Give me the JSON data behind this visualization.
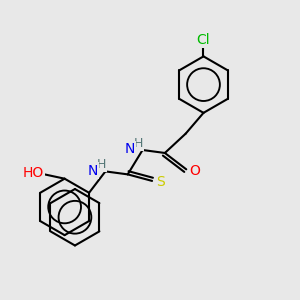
{
  "background_color": "#e8e8e8",
  "bond_color": "#000000",
  "bond_width": 1.5,
  "atom_colors": {
    "Cl": "#00bb00",
    "O": "#ff0000",
    "N": "#0000ee",
    "S": "#cccc00",
    "H_label": "#557777",
    "C": "#000000"
  },
  "font_size": 9,
  "xlim": [
    0,
    10
  ],
  "ylim": [
    0,
    10
  ]
}
